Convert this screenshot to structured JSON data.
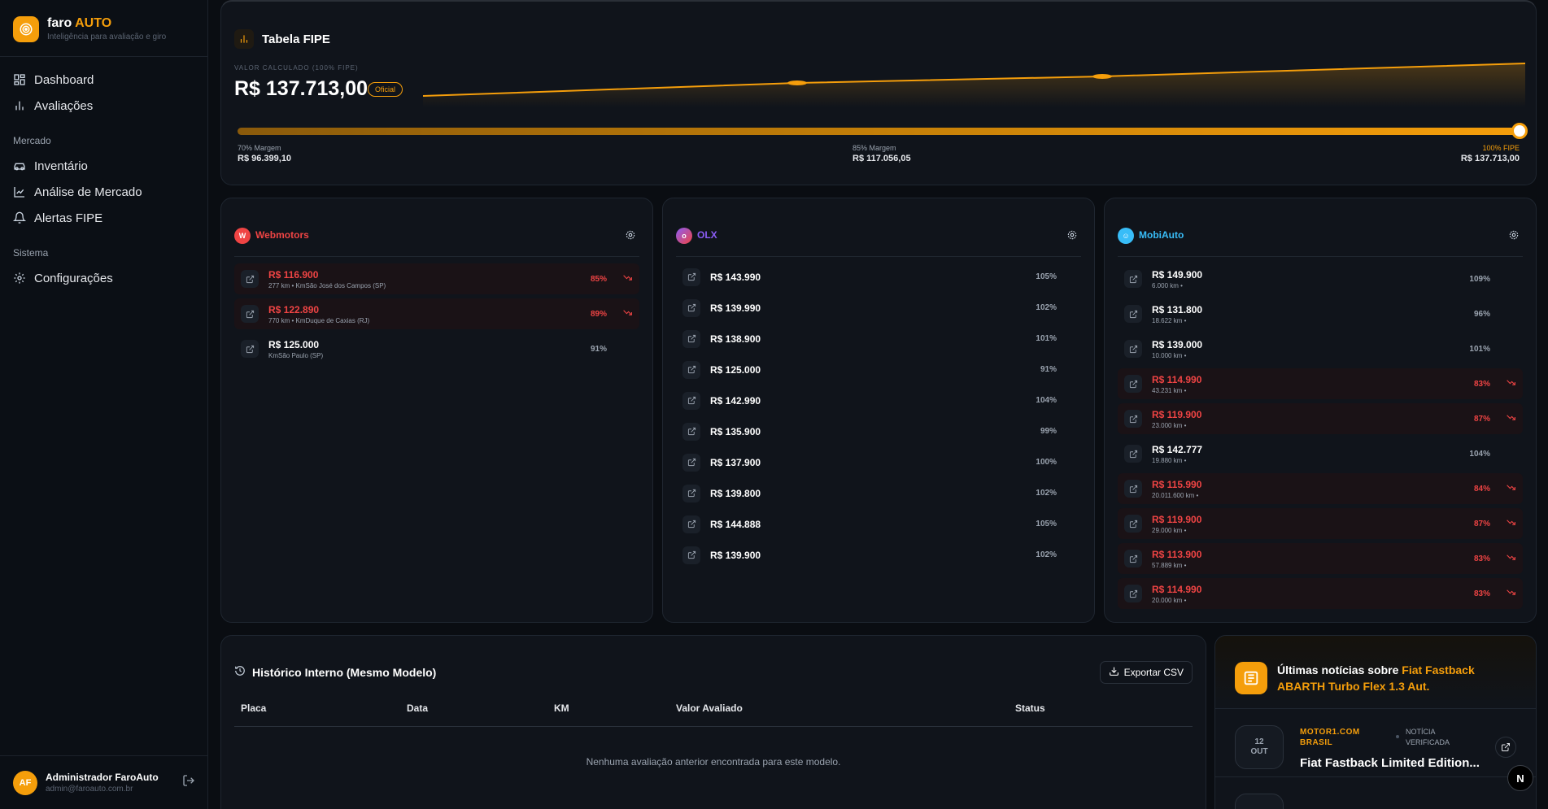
{
  "brand": {
    "name_part1": "faro",
    "name_part2": "AUTO",
    "subtitle": "Inteligência para avaliação e giro"
  },
  "nav": {
    "dashboard": "Dashboard",
    "avaliacoes": "Avaliações",
    "section_mercado": "Mercado",
    "inventario": "Inventário",
    "analise": "Análise de Mercado",
    "alertas": "Alertas FIPE",
    "section_sistema": "Sistema",
    "configuracoes": "Configurações"
  },
  "user": {
    "initials": "AF",
    "name": "Administrador FaroAuto",
    "email": "admin@faroauto.com.br"
  },
  "fipe": {
    "title": "Tabela FIPE",
    "calc_label": "VALOR CALCULADO (100% FIPE)",
    "value": "R$ 137.713,00",
    "badge": "Oficial",
    "range_fraction": 1.0,
    "ticks": [
      {
        "label": "70% Margem",
        "value": "R$ 96.399,10"
      },
      {
        "label": "85% Margem",
        "value": "R$ 117.056,05"
      },
      {
        "label": "100% FIPE",
        "value": "R$ 137.713,00"
      }
    ]
  },
  "sources": {
    "webmotors": {
      "name": "Webmotors",
      "color": "#ef4444",
      "rows": [
        {
          "price": "R$ 116.900",
          "sub": "277 km • KmSão José dos Campos (SP)",
          "pct": "85%",
          "low": true
        },
        {
          "price": "R$ 122.890",
          "sub": "770 km • KmDuque de Caxias (RJ)",
          "pct": "89%",
          "low": true
        },
        {
          "price": "R$ 125.000",
          "sub": "KmSão Paulo (SP)",
          "pct": "91%",
          "low": false
        }
      ]
    },
    "olx": {
      "name": "OLX",
      "color": "#8b5cf6",
      "rows": [
        {
          "price": "R$ 143.990",
          "pct": "105%"
        },
        {
          "price": "R$ 139.990",
          "pct": "102%"
        },
        {
          "price": "R$ 138.900",
          "pct": "101%"
        },
        {
          "price": "R$ 125.000",
          "pct": "91%"
        },
        {
          "price": "R$ 142.990",
          "pct": "104%"
        },
        {
          "price": "R$ 135.900",
          "pct": "99%"
        },
        {
          "price": "R$ 137.900",
          "pct": "100%"
        },
        {
          "price": "R$ 139.800",
          "pct": "102%"
        },
        {
          "price": "R$ 144.888",
          "pct": "105%"
        },
        {
          "price": "R$ 139.900",
          "pct": "102%"
        }
      ]
    },
    "mobiauto": {
      "name": "MobiAuto",
      "color": "#38bdf8",
      "rows": [
        {
          "price": "R$ 149.900",
          "sub": "6.000 km •",
          "pct": "109%",
          "low": false
        },
        {
          "price": "R$ 131.800",
          "sub": "18.622 km •",
          "pct": "96%",
          "low": false
        },
        {
          "price": "R$ 139.000",
          "sub": "10.000 km •",
          "pct": "101%",
          "low": false
        },
        {
          "price": "R$ 114.990",
          "sub": "43.231 km •",
          "pct": "83%",
          "low": true
        },
        {
          "price": "R$ 119.900",
          "sub": "23.000 km •",
          "pct": "87%",
          "low": true
        },
        {
          "price": "R$ 142.777",
          "sub": "19.880 km •",
          "pct": "104%",
          "low": false
        },
        {
          "price": "R$ 115.990",
          "sub": "20.011.600 km •",
          "pct": "84%",
          "low": true
        },
        {
          "price": "R$ 119.900",
          "sub": "29.000 km •",
          "pct": "87%",
          "low": true
        },
        {
          "price": "R$ 113.900",
          "sub": "57.889 km •",
          "pct": "83%",
          "low": true
        },
        {
          "price": "R$ 114.990",
          "sub": "20.000 km •",
          "pct": "83%",
          "low": true
        }
      ]
    }
  },
  "historico": {
    "title": "Histórico Interno (Mesmo Modelo)",
    "export": "Exportar CSV",
    "columns": [
      "Placa",
      "Data",
      "KM",
      "Valor Avaliado",
      "Status"
    ],
    "empty": "Nenhuma avaliação anterior encontrada para este modelo."
  },
  "news": {
    "title_prefix": "Últimas notícias sobre ",
    "title_highlight": "Fiat Fastback ABARTH Turbo Flex 1.3 Aut.",
    "items": [
      {
        "day": "12",
        "month": "OUT",
        "source": "MOTOR1.COM BRASIL",
        "tag": "NOTÍCIA VERIFICADA",
        "headline": "Fiat Fastback Limited Edition..."
      }
    ]
  },
  "next_badge": "N"
}
